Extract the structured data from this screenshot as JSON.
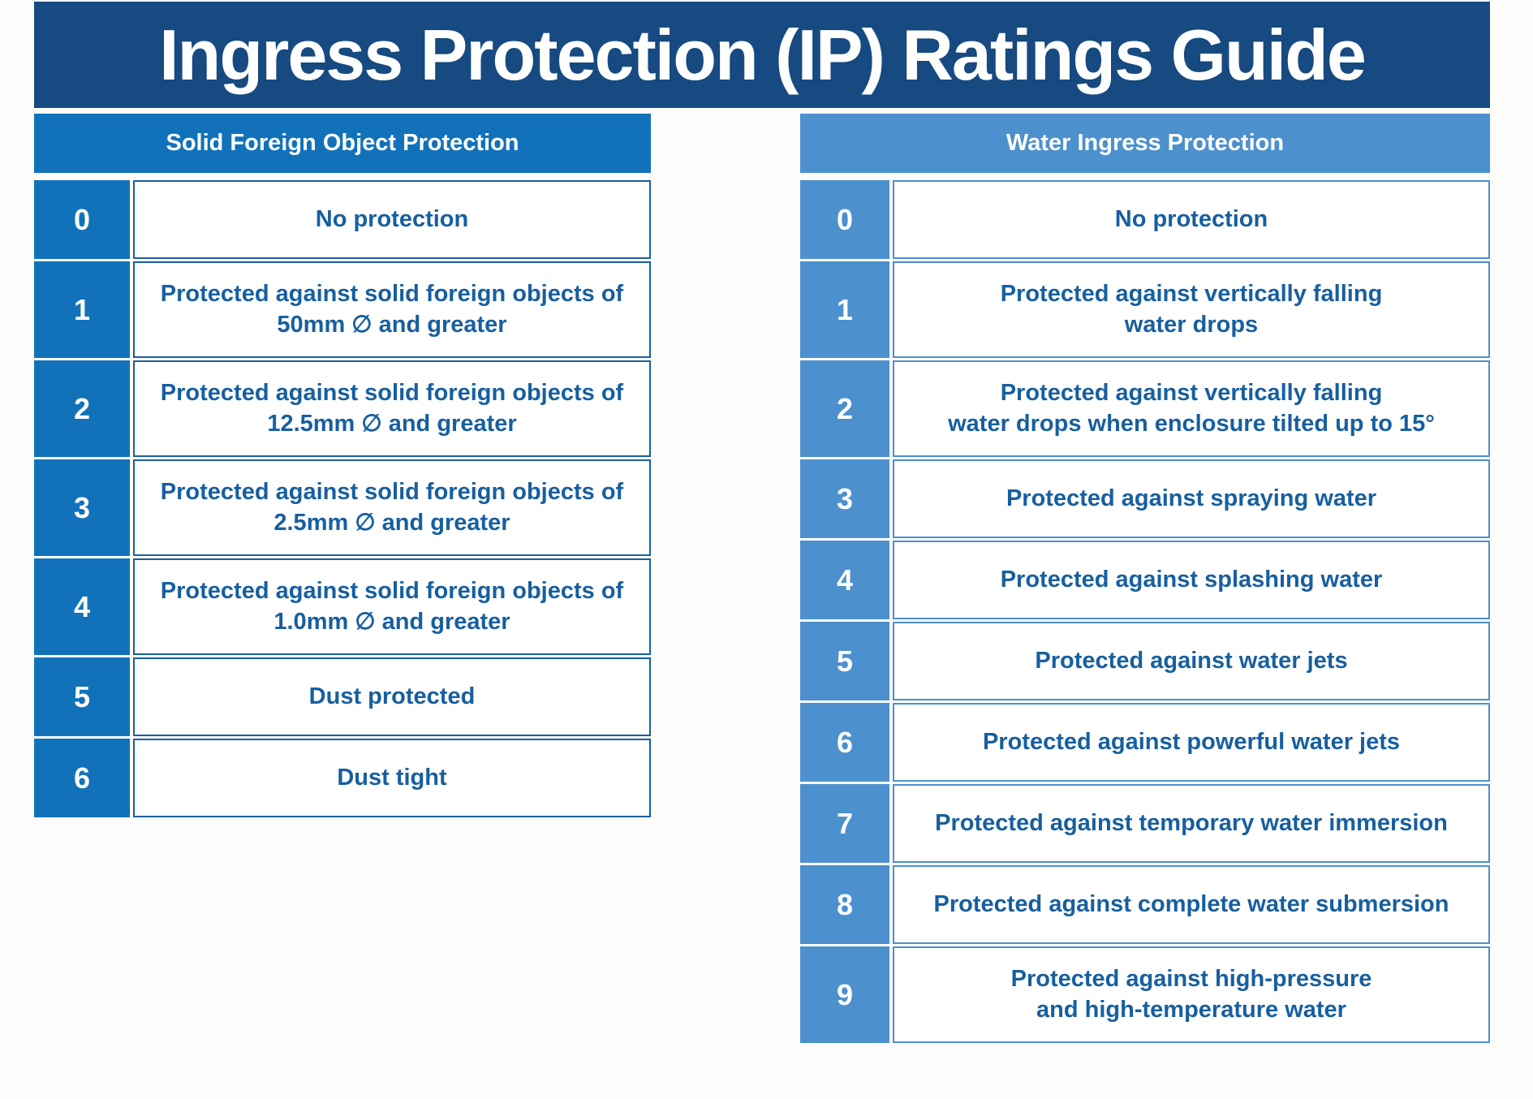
{
  "title": "Ingress Protection (IP) Ratings Guide",
  "colors": {
    "banner": "#164a80",
    "solid_accent": "#1172ba",
    "water_accent": "#4c90ce",
    "description_text": "#175f9f"
  },
  "tables": {
    "solid": {
      "header": "Solid Foreign Object Protection",
      "rows": [
        {
          "rating": "0",
          "description": "No protection"
        },
        {
          "rating": "1",
          "description": "Protected against solid foreign objects of\n50mm ∅ and greater"
        },
        {
          "rating": "2",
          "description": "Protected against solid foreign objects of\n12.5mm ∅ and greater"
        },
        {
          "rating": "3",
          "description": "Protected against solid foreign objects of\n2.5mm ∅ and greater"
        },
        {
          "rating": "4",
          "description": "Protected against solid foreign objects of\n1.0mm ∅ and greater"
        },
        {
          "rating": "5",
          "description": "Dust protected"
        },
        {
          "rating": "6",
          "description": "Dust tight"
        }
      ]
    },
    "water": {
      "header": "Water Ingress Protection",
      "rows": [
        {
          "rating": "0",
          "description": "No protection"
        },
        {
          "rating": "1",
          "description": "Protected against vertically falling\nwater drops"
        },
        {
          "rating": "2",
          "description": "Protected against vertically falling\nwater drops when enclosure tilted up to 15°"
        },
        {
          "rating": "3",
          "description": "Protected against spraying water"
        },
        {
          "rating": "4",
          "description": "Protected against splashing water"
        },
        {
          "rating": "5",
          "description": "Protected against water jets"
        },
        {
          "rating": "6",
          "description": "Protected against powerful water jets"
        },
        {
          "rating": "7",
          "description": "Protected against temporary water immersion"
        },
        {
          "rating": "8",
          "description": "Protected against complete water submersion"
        },
        {
          "rating": "9",
          "description": "Protected against high-pressure\nand high-temperature water"
        }
      ]
    }
  }
}
